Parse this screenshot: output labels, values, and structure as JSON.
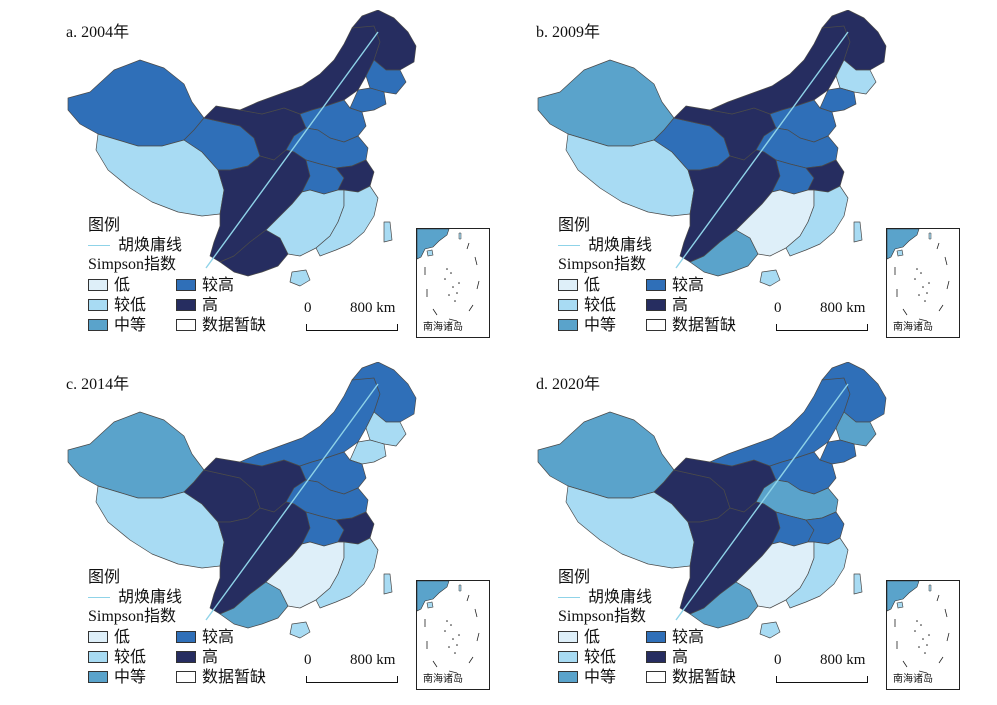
{
  "colors": {
    "low": "#deeff9",
    "lower": "#a8dbf3",
    "medium": "#5aa3cb",
    "higher": "#2f6fb8",
    "high": "#262d60",
    "hu_line": "#8fd3e8",
    "border": "#4a4a4a"
  },
  "legend": {
    "title": "图例",
    "hu_line": "胡焕庸线",
    "index_title": "Simpson指数",
    "items": [
      "低",
      "较高",
      "较低",
      "高",
      "中等",
      "数据暂缺"
    ]
  },
  "scale": {
    "zero": "0",
    "distance": "800 km"
  },
  "inset_label": "南海诸岛",
  "panels": [
    {
      "title": "a. 2004年",
      "fills": {
        "xinjiang": "higher",
        "tibet": "lower",
        "qinghai": "higher",
        "gansu": "high",
        "innermongolia": "high",
        "heilongjiang": "high",
        "jilin": "higher",
        "liaoning": "higher",
        "north": "higher",
        "central": "higher",
        "sichuan": "high",
        "yunnan": "high",
        "south": "lower",
        "east": "lower",
        "hubei": "higher",
        "anhui": "high",
        "hainan": "lower",
        "taiwan": "lower"
      }
    },
    {
      "title": "b. 2009年",
      "fills": {
        "xinjiang": "medium",
        "tibet": "lower",
        "qinghai": "higher",
        "gansu": "high",
        "innermongolia": "high",
        "heilongjiang": "high",
        "jilin": "lower",
        "liaoning": "higher",
        "north": "higher",
        "central": "higher",
        "sichuan": "high",
        "yunnan": "medium",
        "south": "low",
        "east": "lower",
        "hubei": "higher",
        "anhui": "high",
        "hainan": "lower",
        "taiwan": "lower"
      }
    },
    {
      "title": "c. 2014年",
      "fills": {
        "xinjiang": "medium",
        "tibet": "lower",
        "qinghai": "high",
        "gansu": "high",
        "innermongolia": "higher",
        "heilongjiang": "higher",
        "jilin": "lower",
        "liaoning": "lower",
        "north": "higher",
        "central": "higher",
        "sichuan": "high",
        "yunnan": "medium",
        "south": "low",
        "east": "lower",
        "hubei": "higher",
        "anhui": "high",
        "hainan": "lower",
        "taiwan": "lower"
      }
    },
    {
      "title": "d. 2020年",
      "fills": {
        "xinjiang": "medium",
        "tibet": "lower",
        "qinghai": "high",
        "gansu": "high",
        "innermongolia": "higher",
        "heilongjiang": "higher",
        "jilin": "medium",
        "liaoning": "higher",
        "north": "higher",
        "central": "medium",
        "sichuan": "high",
        "yunnan": "medium",
        "south": "low",
        "east": "lower",
        "hubei": "higher",
        "anhui": "higher",
        "hainan": "lower",
        "taiwan": "lower"
      }
    }
  ]
}
